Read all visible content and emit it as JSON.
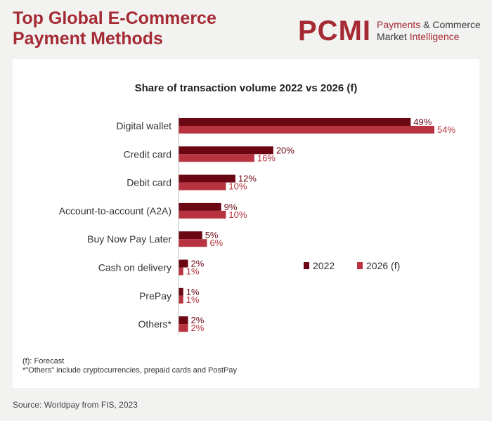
{
  "header": {
    "title_line1": "Top Global E-Commerce",
    "title_line2": "Payment Methods",
    "logo_mark": "PCMI",
    "logo_line1_a": "Payments",
    "logo_line1_b": "& Commerce",
    "logo_line2_a": "Market",
    "logo_line2_b": "Intelligence"
  },
  "footnotes": {
    "forecast": "(f): Forecast",
    "others": "*\"Others\" include cryptocurrencies, prepaid cards and PostPay"
  },
  "source": "Source: Worldpay from FIS, 2023",
  "colors": {
    "series_2022": "#6b0713",
    "series_2026": "#b8333f",
    "accent": "#a52a34"
  },
  "chart_data": {
    "type": "bar",
    "orientation": "horizontal",
    "title": "Share of transaction volume 2022 vs 2026 (f)",
    "categories": [
      "Digital wallet",
      "Credit card",
      "Debit card",
      "Account-to-account (A2A)",
      "Buy Now Pay Later",
      "Cash on delivery",
      "PrePay",
      "Others*"
    ],
    "series": [
      {
        "name": "2022",
        "values": [
          49,
          20,
          12,
          9,
          5,
          2,
          1,
          2
        ]
      },
      {
        "name": "2026 (f)",
        "values": [
          54,
          16,
          10,
          10,
          6,
          1,
          1,
          2
        ]
      }
    ],
    "value_suffix": "%",
    "xlim": [
      0,
      54
    ],
    "grid": false,
    "legend_position": "right-middle"
  }
}
